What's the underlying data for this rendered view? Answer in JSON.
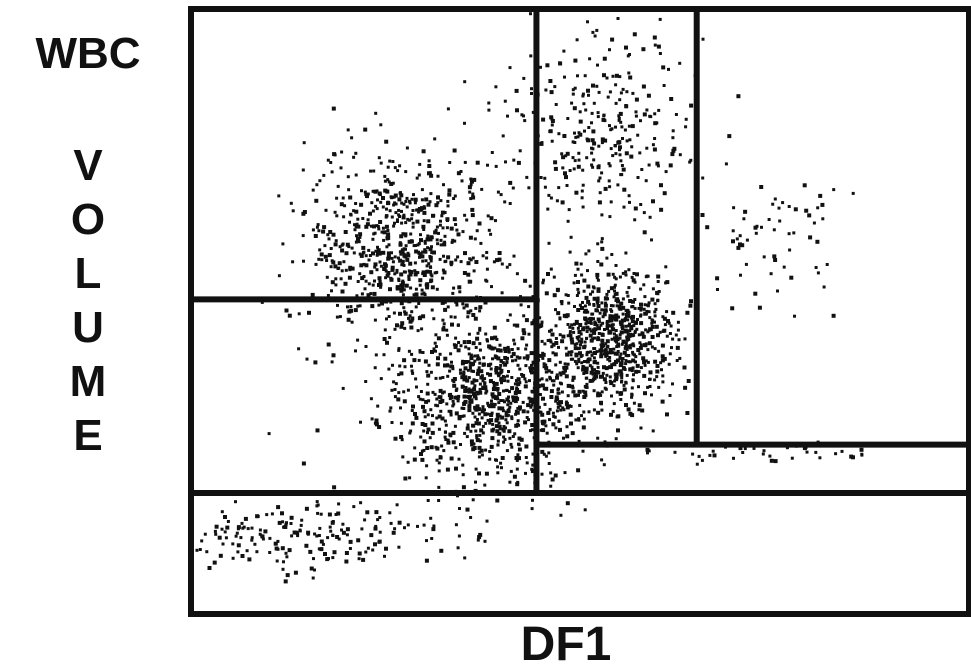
{
  "chart_data": {
    "type": "scatter",
    "title": "",
    "ylabel_top": "WBC",
    "ylabel": "VOLUME",
    "xlabel": "DF1",
    "grid": false,
    "legend": "none",
    "colors": {
      "ink": "#111111",
      "background": "#ffffff"
    },
    "gate_lines": [
      {
        "orientation": "vertical",
        "x": 0.444
      },
      {
        "orientation": "vertical",
        "x": 0.65
      },
      {
        "orientation": "horizontal",
        "y": 0.52
      },
      {
        "orientation": "horizontal",
        "y": 0.2
      },
      {
        "orientation": "horizontal",
        "y": 0.28
      }
    ],
    "clusters": [
      {
        "cx": 0.38,
        "cy": 0.36,
        "sx": 0.07,
        "sy": 0.07,
        "n": 900
      },
      {
        "cx": 0.27,
        "cy": 0.61,
        "sx": 0.06,
        "sy": 0.08,
        "n": 700
      },
      {
        "cx": 0.54,
        "cy": 0.46,
        "sx": 0.04,
        "sy": 0.06,
        "n": 700
      },
      {
        "cx": 0.52,
        "cy": 0.8,
        "sx": 0.06,
        "sy": 0.08,
        "n": 300
      },
      {
        "cx": 0.75,
        "cy": 0.62,
        "sx": 0.05,
        "sy": 0.05,
        "n": 60
      },
      {
        "cx": 0.12,
        "cy": 0.13,
        "sx": 0.1,
        "sy": 0.03,
        "n": 220
      },
      {
        "cx": 0.74,
        "cy": 0.27,
        "sx": 0.07,
        "sy": 0.008,
        "n": 40
      }
    ]
  }
}
